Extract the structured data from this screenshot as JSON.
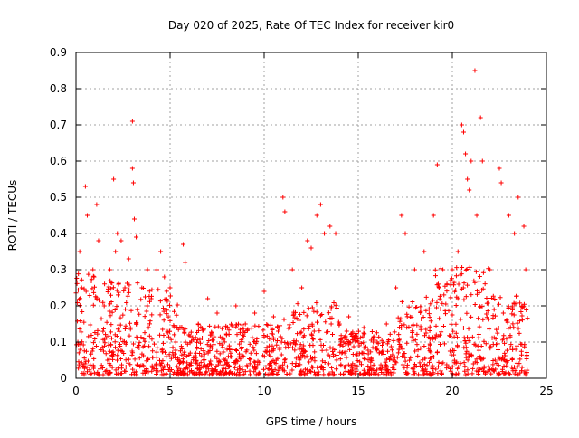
{
  "chart_data": {
    "type": "scatter",
    "title": "Day 020 of 2025, Rate Of TEC Index for receiver kir0",
    "xlabel": "GPS time / hours",
    "ylabel": "ROTI / TECUs",
    "xlim": [
      0,
      25
    ],
    "ylim": [
      0,
      0.9
    ],
    "xticks": [
      0,
      5,
      10,
      15,
      20,
      25
    ],
    "yticks": [
      0,
      0.1,
      0.2,
      0.3,
      0.4,
      0.5,
      0.6,
      0.7,
      0.8,
      0.9
    ],
    "xtick_labels": [
      "0",
      "5",
      "10",
      "15",
      "20",
      "25"
    ],
    "ytick_labels": [
      "0",
      "0.1",
      "0.2",
      "0.3",
      "0.4",
      "0.5",
      "0.6",
      "0.7",
      "0.8",
      "0.9"
    ],
    "grid": true,
    "marker": "+",
    "color": "#ff0000",
    "series": [
      {
        "x": [
          0.1,
          0.2,
          0.3,
          0.5,
          0.6,
          0.9,
          1.1,
          1.2,
          1.5,
          1.8,
          2.0,
          2.1,
          2.2,
          2.4,
          2.6,
          2.8,
          3.0,
          3.0,
          3.05,
          3.1,
          3.2,
          3.5,
          3.8,
          4.0,
          4.3,
          4.5,
          4.7,
          5.0,
          5.3,
          5.7,
          5.8,
          6.0,
          6.5,
          7.0,
          7.2,
          7.5,
          8.0,
          8.5,
          9.0,
          9.5,
          10.0,
          10.5,
          11.0,
          11.1,
          11.5,
          12.0,
          12.3,
          12.5,
          12.8,
          13.0,
          13.2,
          13.5,
          13.8,
          14.0,
          14.5,
          15.0,
          15.3,
          15.8,
          16.0,
          16.5,
          17.0,
          17.3,
          17.5,
          18.0,
          18.5,
          19.0,
          19.2,
          19.3,
          19.5,
          20.0,
          20.3,
          20.5,
          20.6,
          20.7,
          20.8,
          20.9,
          21.0,
          21.2,
          21.3,
          21.5,
          21.6,
          22.0,
          22.5,
          22.6,
          23.0,
          23.3,
          23.5,
          23.8,
          23.9
        ],
        "y": [
          0.1,
          0.35,
          0.25,
          0.53,
          0.45,
          0.3,
          0.48,
          0.38,
          0.2,
          0.3,
          0.55,
          0.35,
          0.4,
          0.38,
          0.25,
          0.33,
          0.71,
          0.58,
          0.54,
          0.44,
          0.39,
          0.25,
          0.3,
          0.22,
          0.3,
          0.35,
          0.28,
          0.25,
          0.1,
          0.37,
          0.32,
          0.12,
          0.15,
          0.22,
          0.12,
          0.18,
          0.12,
          0.2,
          0.15,
          0.18,
          0.24,
          0.17,
          0.5,
          0.46,
          0.3,
          0.25,
          0.38,
          0.36,
          0.45,
          0.48,
          0.4,
          0.42,
          0.4,
          0.15,
          0.17,
          0.1,
          0.14,
          0.1,
          0.08,
          0.15,
          0.25,
          0.45,
          0.4,
          0.3,
          0.35,
          0.45,
          0.59,
          0.25,
          0.3,
          0.3,
          0.35,
          0.7,
          0.68,
          0.62,
          0.55,
          0.52,
          0.6,
          0.85,
          0.45,
          0.72,
          0.6,
          0.3,
          0.58,
          0.54,
          0.45,
          0.4,
          0.5,
          0.42,
          0.3
        ]
      }
    ]
  }
}
